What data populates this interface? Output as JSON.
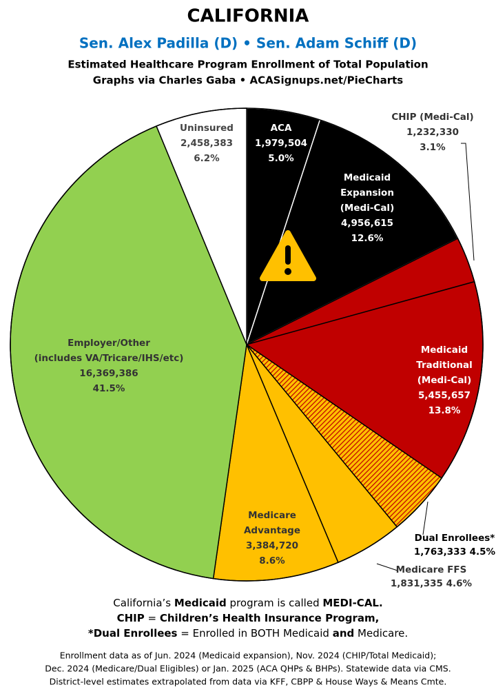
{
  "chart_data": {
    "type": "pie",
    "title": "CALIFORNIA",
    "subtitle": "Sen. Alex Padilla (D) • Sen. Adam Schiff (D)",
    "header_lines": [
      "Estimated Healthcare Program Enrollment of Total Population",
      "Graphs via Charles Gaba  •  ACASignups.net/PieCharts"
    ],
    "categories": [
      [
        "ACA"
      ],
      [
        "Medicaid",
        "Expansion",
        "(Medi-Cal)"
      ],
      [
        "CHIP (Medi-Cal)"
      ],
      [
        "Medicaid",
        "Traditional",
        "(Medi-Cal)"
      ],
      [
        "Dual Enrollees*"
      ],
      [
        "Medicare FFS"
      ],
      [
        "Medicare",
        "Advantage"
      ],
      [
        "Employer/Other",
        "(includes VA/Tricare/IHS/etc)"
      ],
      [
        "Uninsured"
      ]
    ],
    "values": [
      1979504,
      4956615,
      1232330,
      5455657,
      1763333,
      1831335,
      3384720,
      16369386,
      2458383
    ],
    "value_labels": [
      "1,979,504",
      "4,956,615",
      "1,232,330",
      "5,455,657",
      "1,763,333",
      "1,831,335",
      "3,384,720",
      "16,369,386",
      "2,458,383"
    ],
    "percent_labels": [
      "5.0%",
      "12.6%",
      "3.1%",
      "13.8%",
      "4.5%",
      "4.6%",
      "8.6%",
      "41.5%",
      "6.2%"
    ],
    "colors": [
      "#000000",
      "#000000",
      "#c00000",
      "#c00000",
      "#e36c09",
      "#ffc000",
      "#ffc000",
      "#92d050",
      "#ffffff"
    ],
    "notes": [
      [
        {
          "text": "California’s ",
          "bold": false
        },
        {
          "text": "Medicaid",
          "bold": true
        },
        {
          "text": " program is called ",
          "bold": false
        },
        {
          "text": "MEDI-CAL.",
          "bold": true
        }
      ],
      [
        {
          "text": "CHIP",
          "bold": true
        },
        {
          "text": " = ",
          "bold": false
        },
        {
          "text": "Children’s Health Insurance Program,",
          "bold": true
        }
      ],
      [
        {
          "text": "*Dual Enrollees",
          "bold": true
        },
        {
          "text": " = Enrolled in BOTH Medicaid ",
          "bold": false
        },
        {
          "text": "and",
          "bold": true
        },
        {
          "text": " Medicare.",
          "bold": false
        }
      ]
    ],
    "footnotes": [
      "Enrollment data as of Jun. 2024 (Medicaid expansion), Nov. 2024 (CHIP/Total Medicaid);",
      "Dec. 2024 (Medicare/Dual Eligibles) or Jan. 2025 (ACA QHPs & BHPs). Statewide data via CMS.",
      "District-level estimates extrapolated from data via KFF, CBPP & House Ways & Means Cmte."
    ]
  }
}
